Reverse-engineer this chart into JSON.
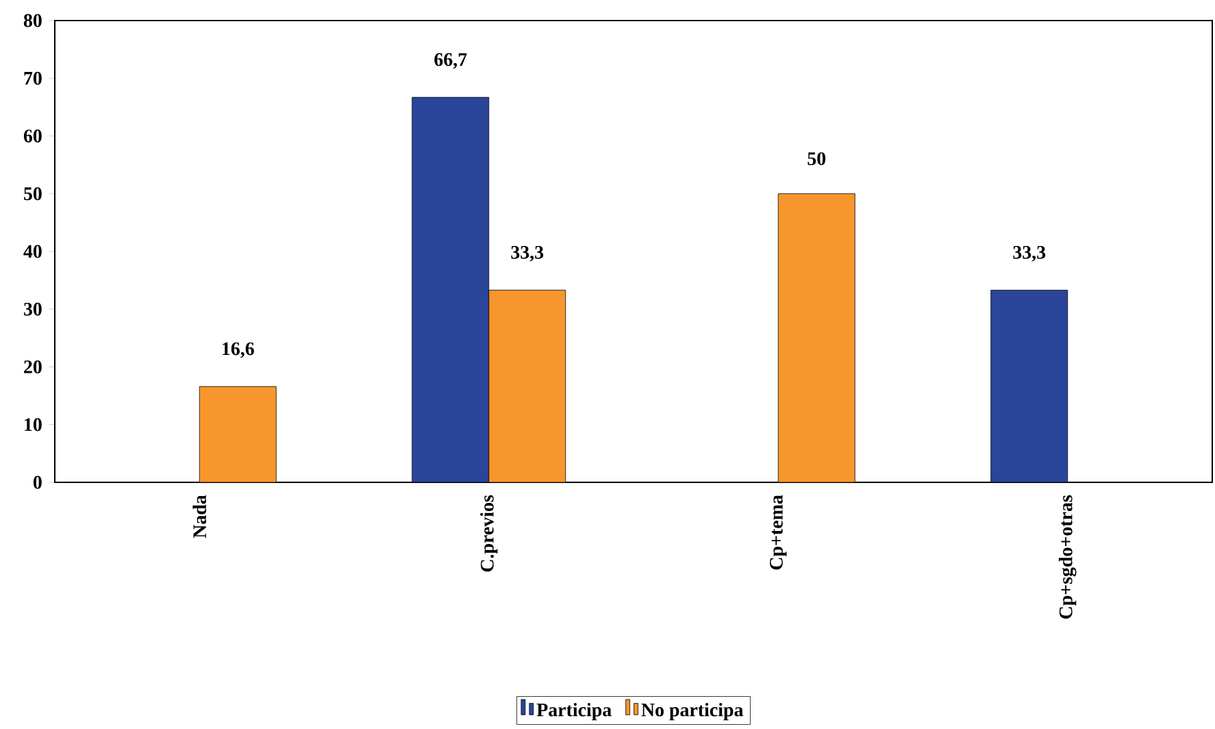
{
  "chart_data": {
    "type": "bar",
    "categories": [
      "Nada",
      "C.previos",
      "Cp+tema",
      "Cp+sgdo+otras"
    ],
    "series": [
      {
        "name": "Participa",
        "color": "#2a4599",
        "values": [
          null,
          66.7,
          null,
          33.3
        ],
        "value_labels": [
          null,
          "66,7",
          null,
          "33,3"
        ]
      },
      {
        "name": "No participa",
        "color": "#f7962c",
        "values": [
          16.6,
          33.3,
          50,
          null
        ],
        "value_labels": [
          "16,6",
          "33,3",
          "50",
          null
        ]
      }
    ],
    "ylim": [
      0,
      80
    ],
    "yticks": [
      0,
      10,
      20,
      30,
      40,
      50,
      60,
      70,
      80
    ],
    "grid": false,
    "legend": "bottom"
  }
}
